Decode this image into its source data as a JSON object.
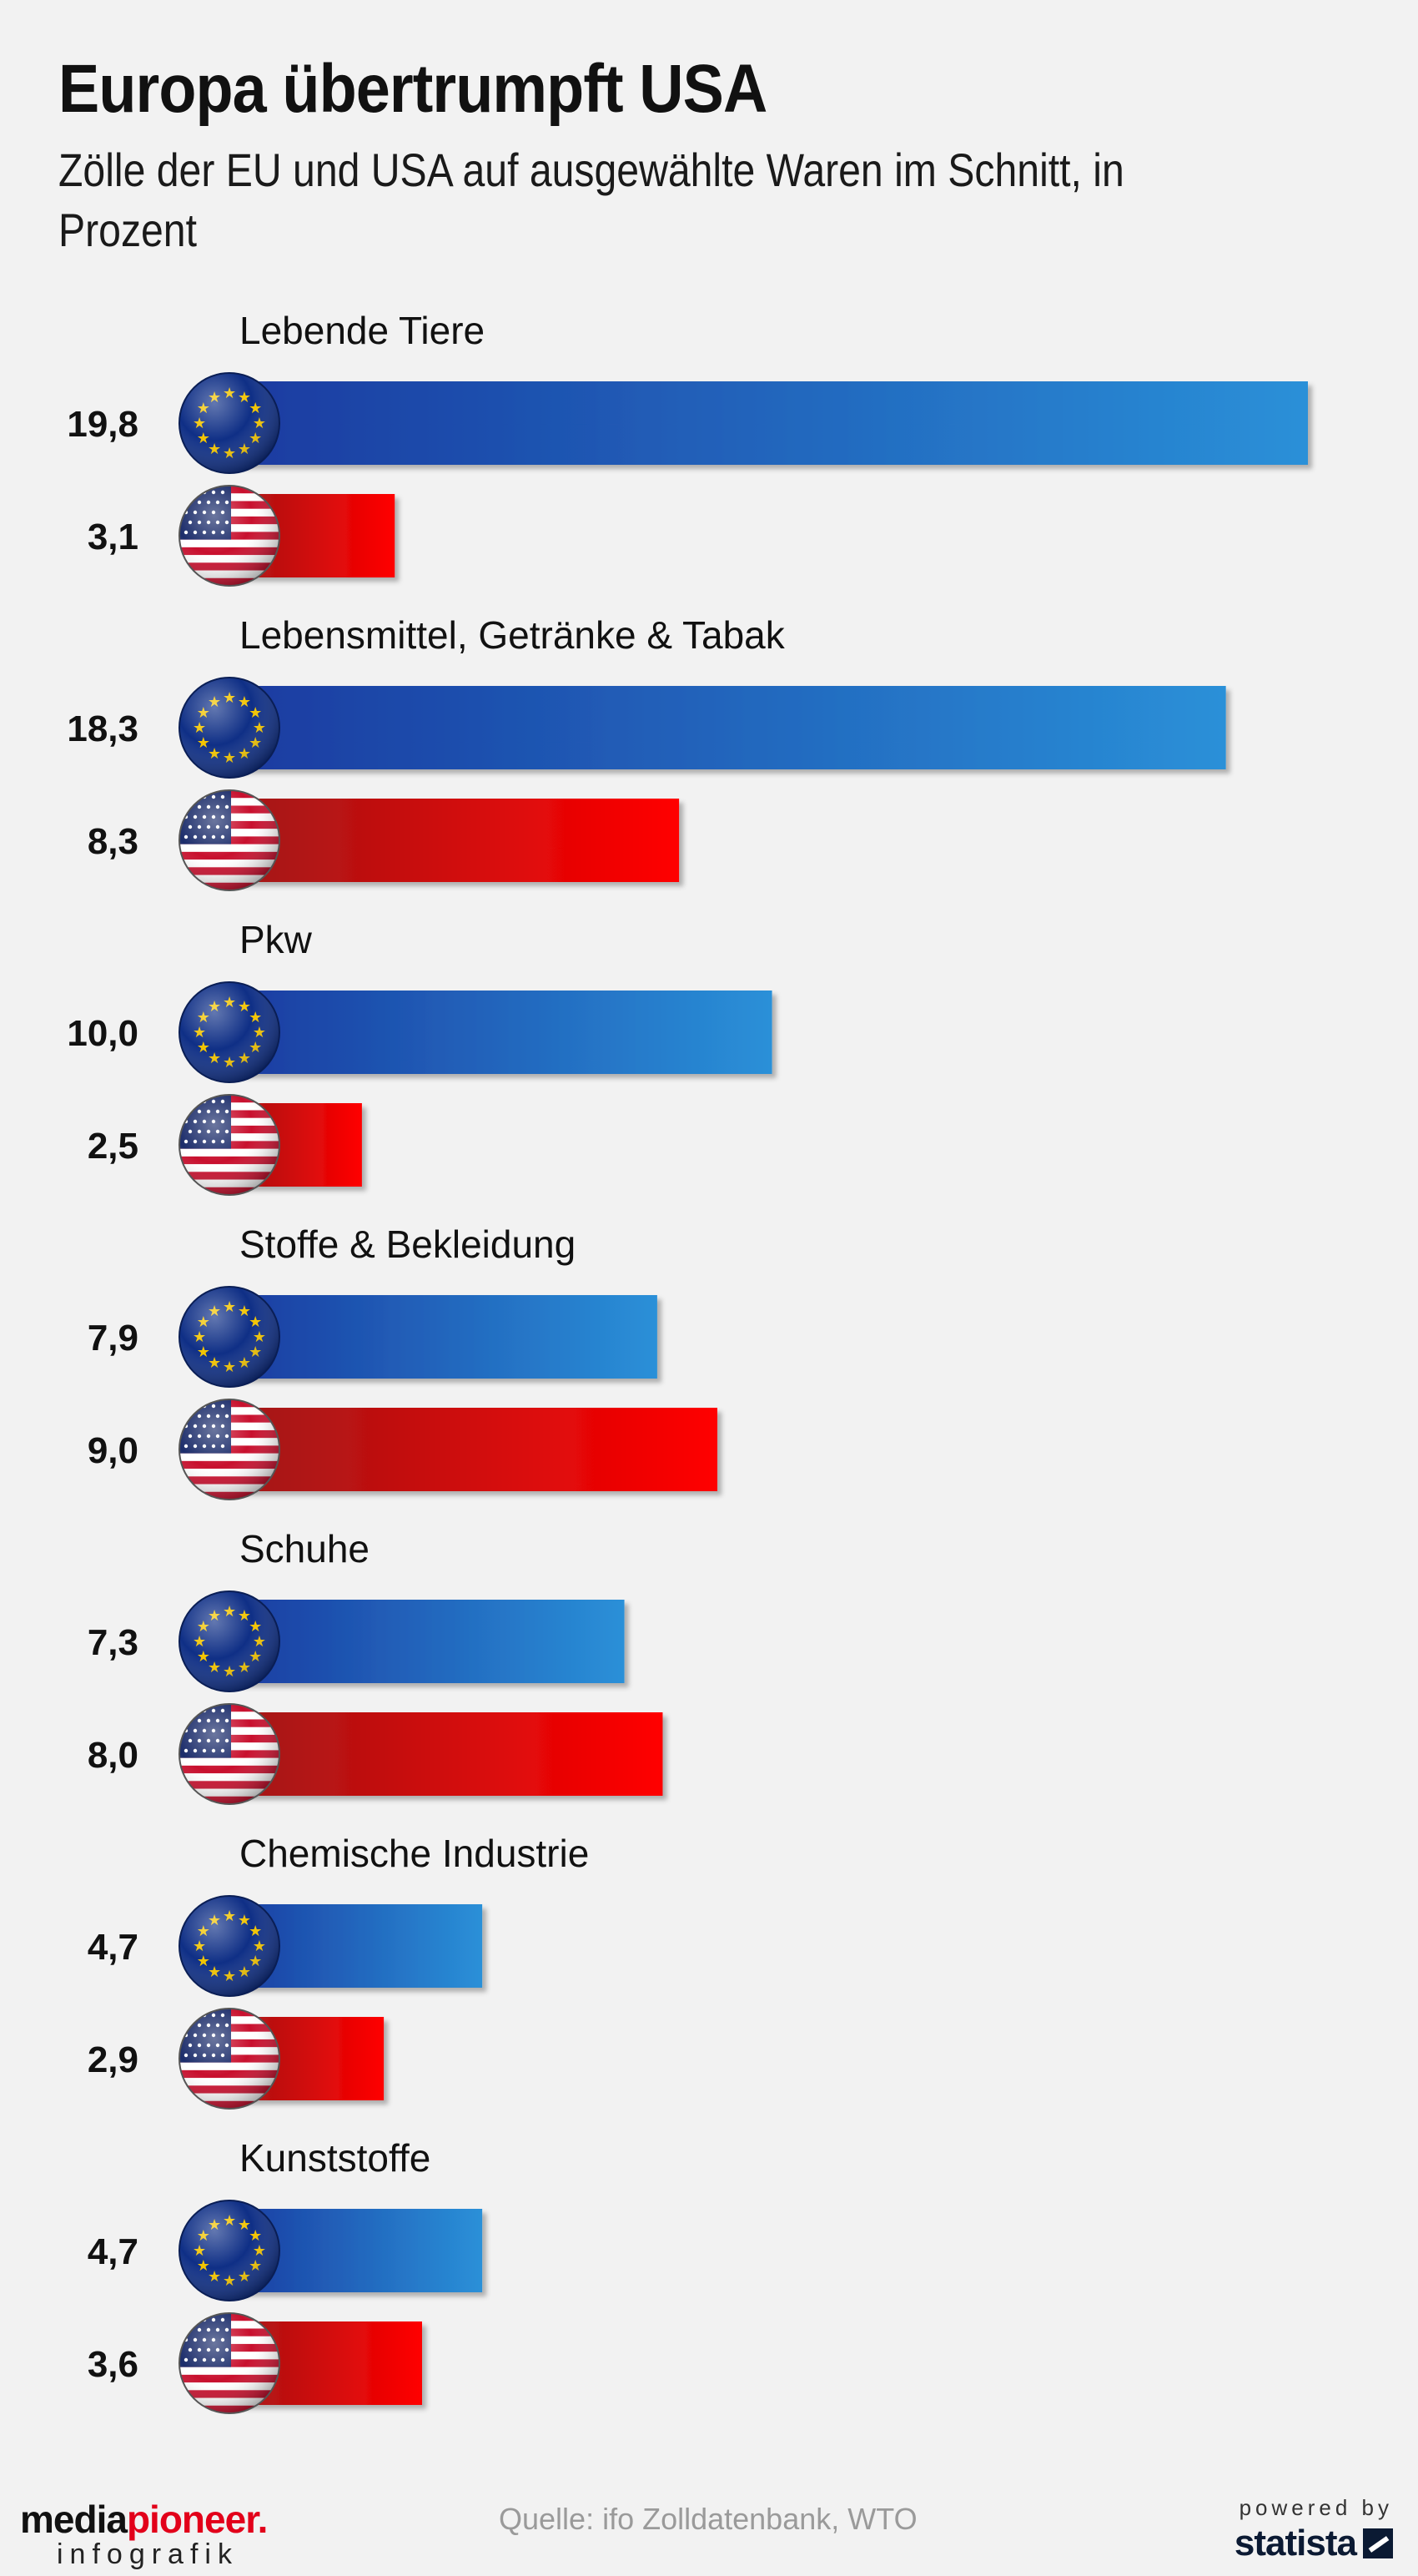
{
  "title": "Europa übertrumpft USA",
  "subtitle": "Zölle der EU und USA auf ausgewählte Waren im Schnitt, in Prozent",
  "footer": {
    "brand_part1": "media",
    "brand_part2": "pioneer",
    "brand_dot": ".",
    "brand_sub": "infografik",
    "source": "Quelle: ifo Zolldatenbank, WTO",
    "powered_by": "powered by",
    "statista": "statista"
  },
  "colors": {
    "eu_bar_start": "#1a3aa0",
    "eu_bar_end": "#2a90d8",
    "us_bar_start": "#a01818",
    "us_bar_end": "#ff0000",
    "eu_flag_blue": "#0f2f86",
    "eu_star": "#f2c400"
  },
  "icons": [
    "eu-flag-icon",
    "us-flag-icon"
  ],
  "chart_data": {
    "type": "bar",
    "orientation": "horizontal",
    "categories": [
      "Lebende Tiere",
      "Lebensmittel, Getränke & Tabak",
      "Pkw",
      "Stoffe & Bekleidung",
      "Schuhe",
      "Chemische Industrie",
      "Kunststoffe"
    ],
    "series": [
      {
        "flag": "eu",
        "values": [
          19.8,
          18.3,
          10.0,
          7.9,
          7.3,
          4.7,
          4.7
        ],
        "labels": [
          "19,8",
          "18,3",
          "10,0",
          "7,9",
          "7,3",
          "4,7",
          "4,7"
        ]
      },
      {
        "flag": "us",
        "values": [
          3.1,
          8.3,
          2.5,
          9.0,
          8.0,
          2.9,
          3.6
        ],
        "labels": [
          "3,1",
          "8,3",
          "2,5",
          "9,0",
          "8,0",
          "2,9",
          "3,6"
        ]
      }
    ],
    "xlim": [
      0,
      19.8
    ],
    "grid": false,
    "legend": "none"
  }
}
